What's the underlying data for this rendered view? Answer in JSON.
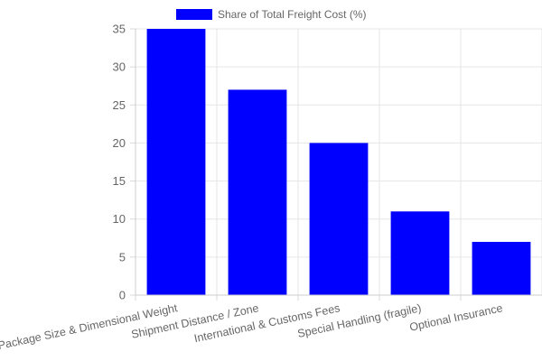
{
  "chart_data": {
    "type": "bar",
    "categories": [
      "Package Size & Dimensional Weight",
      "Shipment Distance / Zone",
      "International & Customs Fees",
      "Special Handling (fragile)",
      "Optional Insurance"
    ],
    "series": [
      {
        "name": "Share of Total Freight Cost (%)",
        "values": [
          35,
          27,
          20,
          11,
          7
        ],
        "color": "#0000ff"
      }
    ],
    "ylim": [
      0,
      35
    ],
    "yticks": [
      0,
      5,
      10,
      15,
      20,
      25,
      30,
      35
    ],
    "grid": true,
    "legend_position": "top"
  }
}
